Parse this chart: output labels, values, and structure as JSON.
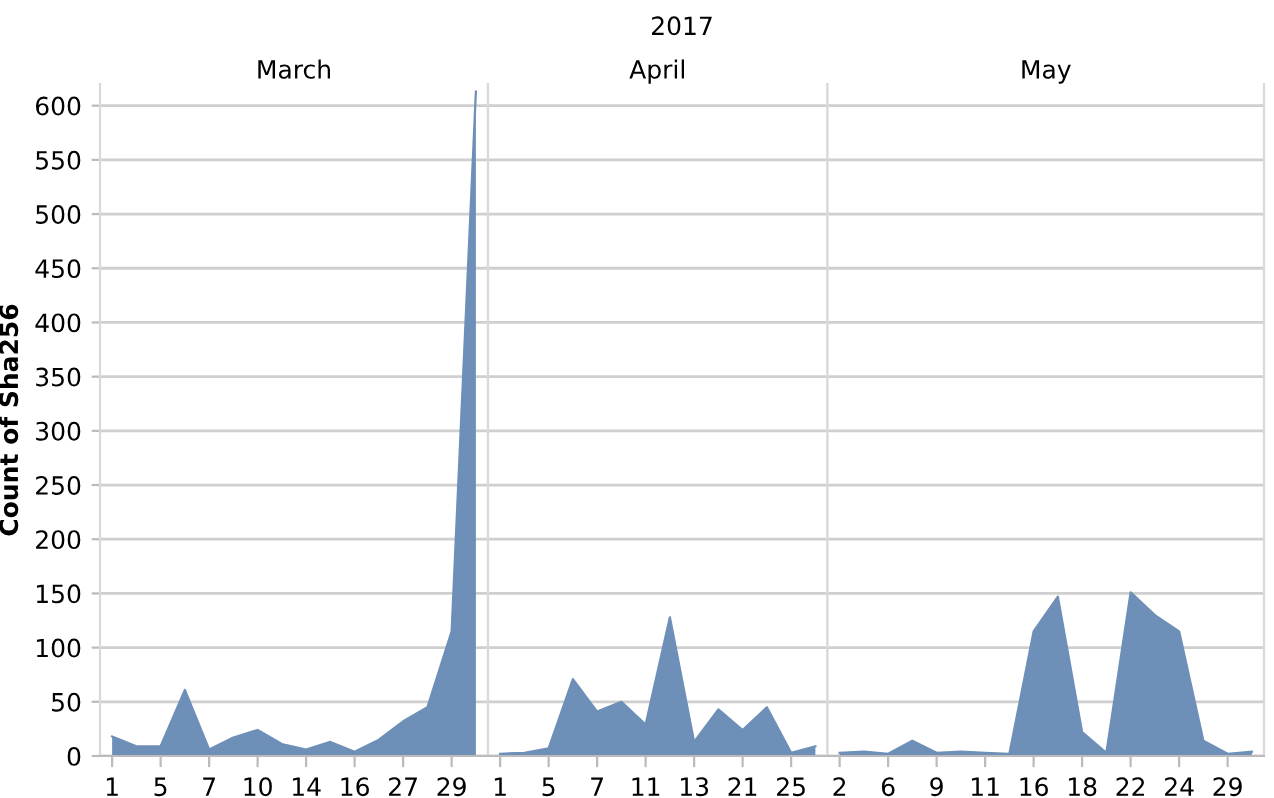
{
  "chart_data": [
    {
      "type": "area",
      "title": "March",
      "ylabel": "Count of Sha256",
      "annotations": [
        "2017"
      ],
      "categories": [
        "1",
        null,
        "5",
        null,
        "7",
        null,
        "10",
        null,
        "14",
        null,
        "16",
        null,
        "27",
        null,
        "29",
        null
      ],
      "series": [
        {
          "color": "#6d8fb8",
          "values": [
            18,
            9,
            9,
            61,
            6,
            17,
            24,
            11,
            6,
            13,
            4,
            15,
            32,
            45,
            115,
            613
          ]
        }
      ],
      "ylim": [
        0,
        620
      ],
      "yticks": [
        0,
        50,
        100,
        150,
        200,
        250,
        300,
        350,
        400,
        450,
        500,
        550,
        600
      ],
      "grid": "y"
    },
    {
      "type": "area",
      "title": "April",
      "tick_labels": "x",
      "categories": [
        "1",
        null,
        "5",
        null,
        "7",
        null,
        "11",
        null,
        "13",
        null,
        "21",
        null,
        "25",
        null
      ],
      "series": [
        {
          "color": "#6d8fb8",
          "values": [
            2,
            3,
            7,
            71,
            41,
            50,
            29,
            128,
            13,
            43,
            24,
            45,
            3,
            9
          ]
        }
      ],
      "ylim": [
        0,
        620
      ],
      "yticks": [
        0,
        50,
        100,
        150,
        200,
        250,
        300,
        350,
        400,
        450,
        500,
        550,
        600
      ],
      "grid": "y"
    },
    {
      "type": "area",
      "title": "May",
      "tick_labels": "x",
      "categories": [
        "2",
        null,
        "6",
        null,
        "9",
        null,
        "11",
        null,
        "16",
        null,
        "18",
        null,
        "22",
        null,
        "24",
        null,
        "29",
        null
      ],
      "series": [
        {
          "color": "#6d8fb8",
          "values": [
            3,
            4,
            2,
            14,
            3,
            4,
            3,
            2,
            115,
            147,
            22,
            3,
            151,
            130,
            115,
            14,
            2,
            4
          ]
        }
      ],
      "ylim": [
        0,
        620
      ],
      "yticks": [
        0,
        50,
        100,
        150,
        200,
        250,
        300,
        350,
        400,
        450,
        500,
        550,
        600
      ],
      "grid": "y"
    }
  ]
}
